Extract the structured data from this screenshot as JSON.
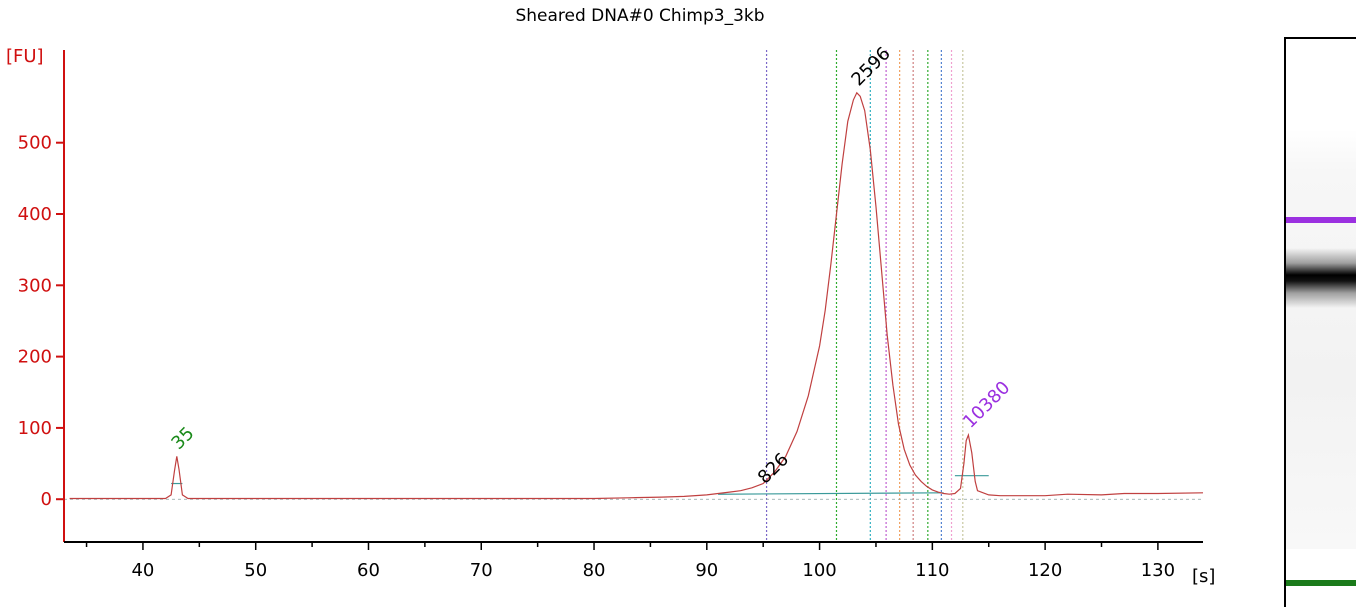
{
  "chart_data": {
    "type": "line",
    "title": "Sheared DNA#0 Chimp3_3kb",
    "xlabel": "[s]",
    "ylabel": "[FU]",
    "xlim": [
      33,
      134
    ],
    "ylim": [
      -60,
      630
    ],
    "xticks": [
      40,
      50,
      60,
      70,
      80,
      90,
      100,
      110,
      120,
      130
    ],
    "yticks": [
      0,
      100,
      200,
      300,
      400,
      500
    ],
    "grid": false,
    "baseline": 0,
    "peak_labels": [
      {
        "label": "35",
        "x": 43.0,
        "y": 60,
        "color": "#1a8a1a"
      },
      {
        "label": "826",
        "x": 95.0,
        "y": 12,
        "color": "#000000"
      },
      {
        "label": "2596",
        "x": 103.3,
        "y": 570,
        "color": "#000000"
      },
      {
        "label": "10380",
        "x": 113.2,
        "y": 90,
        "color": "#9b30e0"
      }
    ],
    "vertical_markers": [
      {
        "x": 95.3,
        "color": "#7b68c8"
      },
      {
        "x": 101.5,
        "color": "#2eab2e"
      },
      {
        "x": 104.5,
        "color": "#30b0c0"
      },
      {
        "x": 105.9,
        "color": "#c060d0"
      },
      {
        "x": 107.1,
        "color": "#f0a060"
      },
      {
        "x": 108.3,
        "color": "#d08080"
      },
      {
        "x": 109.6,
        "color": "#2eab2e"
      },
      {
        "x": 110.8,
        "color": "#5080d0"
      },
      {
        "x": 111.7,
        "color": "#f0a0d0"
      },
      {
        "x": 112.7,
        "color": "#c8c8a0"
      }
    ],
    "integration_lines": [
      {
        "x1": 91.0,
        "y1": 7,
        "x2": 111.0,
        "y2": 9,
        "color": "#3a9a9a"
      },
      {
        "x1": 112.0,
        "y1": 33,
        "x2": 115.0,
        "y2": 33,
        "color": "#3a9a9a"
      },
      {
        "x1": 42.5,
        "y1": 22,
        "x2": 43.5,
        "y2": 22,
        "color": "#3a9a9a"
      }
    ],
    "series": [
      {
        "color": "#c04040",
        "x": [
          33.5,
          36,
          39,
          42,
          42.5,
          42.8,
          43.0,
          43.2,
          43.5,
          44,
          48,
          55,
          60,
          65,
          68.5,
          69,
          75,
          80,
          83,
          86,
          88,
          90,
          91,
          92,
          93,
          94,
          95,
          96,
          97,
          98,
          99,
          100,
          100.5,
          101,
          101.5,
          102,
          102.5,
          103,
          103.3,
          103.6,
          104,
          104.5,
          105,
          105.5,
          106,
          106.5,
          107,
          107.5,
          108,
          108.5,
          109,
          109.5,
          110,
          110.5,
          111,
          111.5,
          112,
          112.5,
          112.8,
          113.0,
          113.2,
          113.5,
          113.8,
          114,
          115,
          116,
          118,
          120,
          122,
          125,
          127,
          130,
          134
        ],
        "y": [
          1,
          1,
          1,
          1,
          6,
          40,
          60,
          42,
          6,
          1,
          1,
          1,
          1,
          1,
          1,
          1,
          1,
          1,
          2,
          3,
          4,
          6,
          8,
          10,
          12,
          16,
          22,
          38,
          60,
          95,
          145,
          215,
          265,
          330,
          400,
          470,
          530,
          560,
          570,
          565,
          545,
          490,
          410,
          320,
          230,
          160,
          105,
          70,
          48,
          34,
          25,
          18,
          13,
          10,
          8,
          7,
          8,
          15,
          50,
          82,
          90,
          65,
          25,
          12,
          6,
          5,
          5,
          5,
          7,
          6,
          8,
          8,
          9
        ]
      }
    ]
  },
  "gel": {
    "bands": [
      {
        "position": 0.318,
        "color": "#9b30e0"
      },
      {
        "position": 0.42,
        "color": "#000000"
      },
      {
        "position": 0.955,
        "color": "#1a7a1a"
      }
    ]
  }
}
